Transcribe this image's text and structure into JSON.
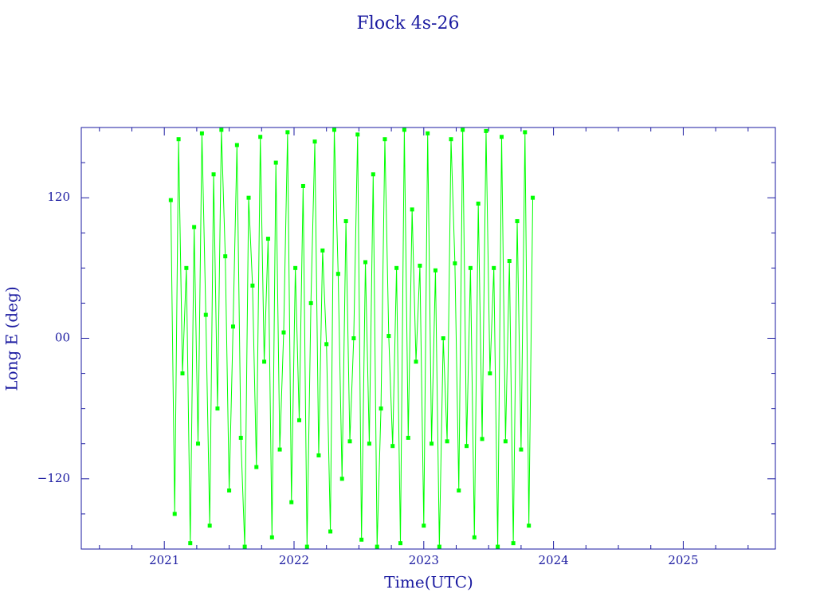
{
  "chart_data": {
    "type": "line",
    "title": "Flock 4s-26",
    "x_label": "Time(UTC)",
    "y_label": "Long E (deg)",
    "xlim": [
      2020.36,
      2025.71
    ],
    "ylim": [
      -180,
      180
    ],
    "xticks": [
      2021,
      2022,
      2023,
      2024,
      2025
    ],
    "xminorticks": [
      2020.5,
      2020.75,
      2021.25,
      2021.5,
      2021.75,
      2022.25,
      2022.5,
      2022.75,
      2023.25,
      2023.5,
      2023.75,
      2024.25,
      2024.5,
      2024.75,
      2025.25,
      2025.5
    ],
    "yticks": [
      {
        "value": -120,
        "label": "−120"
      },
      {
        "value": 0,
        "label": "00"
      },
      {
        "value": 120,
        "label": "120"
      }
    ],
    "yminorticks": [
      -150,
      -90,
      -60,
      -30,
      30,
      60,
      90,
      150
    ],
    "axis_color": "#1a1aa0",
    "series": [
      {
        "color": "#00ff00",
        "x": [
          2021.05,
          2021.08,
          2021.11,
          2021.14,
          2021.17,
          2021.2,
          2021.23,
          2021.26,
          2021.29,
          2021.32,
          2021.35,
          2021.38,
          2021.41,
          2021.44,
          2021.47,
          2021.5,
          2021.53,
          2021.56,
          2021.59,
          2021.62,
          2021.65,
          2021.68,
          2021.71,
          2021.74,
          2021.77,
          2021.8,
          2021.83,
          2021.86,
          2021.89,
          2021.92,
          2021.95,
          2021.98,
          2022.01,
          2022.04,
          2022.07,
          2022.1,
          2022.13,
          2022.16,
          2022.19,
          2022.22,
          2022.25,
          2022.28,
          2022.31,
          2022.34,
          2022.37,
          2022.4,
          2022.43,
          2022.46,
          2022.49,
          2022.52,
          2022.55,
          2022.58,
          2022.61,
          2022.64,
          2022.67,
          2022.7,
          2022.73,
          2022.76,
          2022.79,
          2022.82,
          2022.85,
          2022.88,
          2022.91,
          2022.94,
          2022.97,
          2023,
          2023.03,
          2023.06,
          2023.09,
          2023.12,
          2023.15,
          2023.18,
          2023.21,
          2023.24,
          2023.27,
          2023.3,
          2023.33,
          2023.36,
          2023.39,
          2023.42,
          2023.45,
          2023.48,
          2023.51,
          2023.54,
          2023.57,
          2023.6,
          2023.63,
          2023.66,
          2023.69,
          2023.72,
          2023.75,
          2023.78,
          2023.81,
          2023.84
        ],
        "values": [
          118,
          -150,
          170,
          -30,
          60,
          -175,
          95,
          -90,
          175,
          20,
          -160,
          140,
          -60,
          178,
          70,
          -130,
          10,
          165,
          -85,
          -178,
          120,
          45,
          -110,
          172,
          -20,
          85,
          -170,
          150,
          -95,
          5,
          176,
          -140,
          60,
          -70,
          130,
          -178,
          30,
          168,
          -100,
          75,
          -5,
          -165,
          178,
          55,
          -120,
          100,
          -88,
          0,
          174,
          -172,
          65,
          -90,
          140,
          -178,
          -60,
          170,
          2,
          -92,
          60,
          -175,
          178,
          -85,
          110,
          -20,
          62,
          -160,
          175,
          -90,
          58,
          -178,
          0,
          -88,
          170,
          64,
          -130,
          178,
          -92,
          60,
          -170,
          115,
          -86,
          177,
          -30,
          60,
          -178,
          172,
          -88,
          66,
          -175,
          100,
          -95,
          176,
          -160,
          120
        ]
      }
    ]
  }
}
